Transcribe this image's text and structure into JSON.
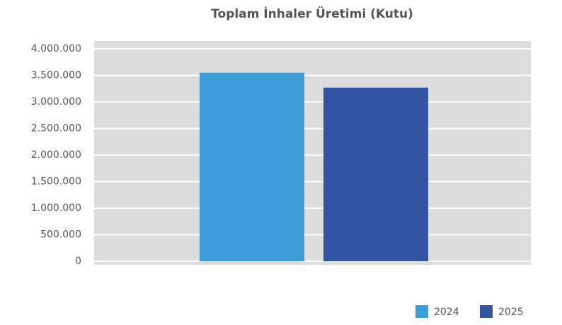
{
  "chart_data": {
    "type": "bar",
    "title": "Toplam İnhaler Üretimi (Kutu)",
    "categories": [
      null
    ],
    "series": [
      {
        "name": "2024",
        "color": "#3d9dd9",
        "values": [
          3550000
        ]
      },
      {
        "name": "2025",
        "color": "#3353a3",
        "values": [
          3270000
        ]
      }
    ],
    "ylim": [
      0,
      4000000
    ],
    "yticks": [
      0,
      {
        "value": 500000,
        "label": "500.000"
      },
      {
        "value": 1000000,
        "label": "1.000.000"
      },
      {
        "value": 1500000,
        "label": "1.500.000"
      },
      {
        "value": 2000000,
        "label": "2.000.000"
      },
      {
        "value": 2500000,
        "label": "2.500.000"
      },
      {
        "value": 3000000,
        "label": "3.000.000"
      },
      {
        "value": 3500000,
        "label": "3.500.000"
      },
      {
        "value": 4000000,
        "label": "4.000.000"
      }
    ],
    "grid": true,
    "legend": "bottom-right"
  }
}
